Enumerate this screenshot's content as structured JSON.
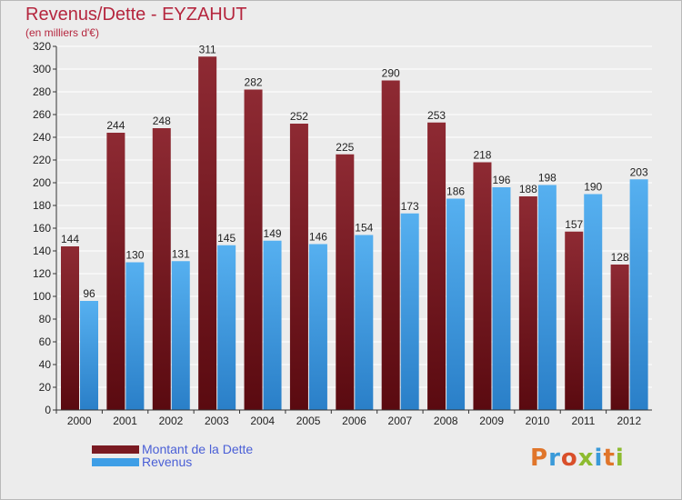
{
  "header": {
    "title": "Revenus/Dette - EYZAHUT",
    "subtitle": "(en milliers d'€)"
  },
  "brand": {
    "text": "Proxiti",
    "letter_colors": [
      "#e0752a",
      "#3a9ad9",
      "#d94f2a",
      "#8dbb2f",
      "#3a9ad9",
      "#e0752a",
      "#8dbb2f"
    ]
  },
  "colors": {
    "dette": "#7a1a22",
    "revenus": "#3e9ee6",
    "grid": "#ffffff",
    "background": "#ececec"
  },
  "chart_data": {
    "type": "bar",
    "categories": [
      "2000",
      "2001",
      "2002",
      "2003",
      "2004",
      "2005",
      "2006",
      "2007",
      "2008",
      "2009",
      "2010",
      "2011",
      "2012"
    ],
    "series": [
      {
        "name": "Montant de la Dette",
        "values": [
          144,
          244,
          248,
          311,
          282,
          252,
          225,
          290,
          253,
          218,
          188,
          157,
          128
        ]
      },
      {
        "name": "Revenus",
        "values": [
          96,
          130,
          131,
          145,
          149,
          146,
          154,
          173,
          186,
          196,
          198,
          190,
          203
        ]
      }
    ],
    "ylim": [
      0,
      320
    ],
    "y_ticks": [
      "0",
      "20",
      "40",
      "60",
      "80",
      "100",
      "120",
      "140",
      "160",
      "180",
      "200",
      "220",
      "240",
      "260",
      "280",
      "300",
      "320"
    ],
    "grid": true,
    "legend_position": "bottom-left"
  }
}
